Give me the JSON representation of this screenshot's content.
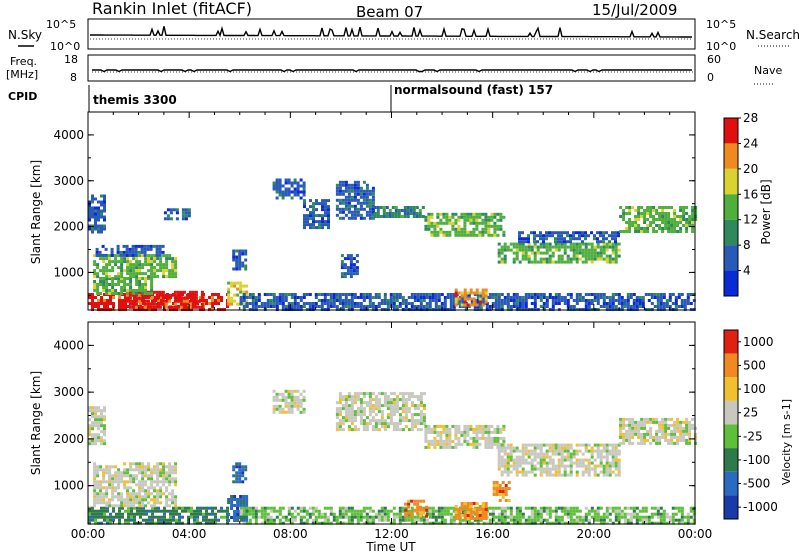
{
  "header": {
    "title": "Rankin Inlet (fitACF)",
    "beam": "Beam 07",
    "date": "15/Jul/2009"
  },
  "params": {
    "nsky_label": "N.Sky",
    "nsearch_label": "N.Search",
    "freq_label": "Freq.",
    "freq_unit": "[MHz]",
    "nave_label": "Nave",
    "cpid_label": "CPID",
    "noise_left_ticks": [
      "10^5",
      "10^0"
    ],
    "noise_right_ticks": [
      "10^5",
      "10^0"
    ],
    "freq_ticks": [
      "18",
      "8"
    ],
    "nave_ticks": [
      "60",
      "0"
    ],
    "cpid_segments": [
      {
        "start_hour": 0,
        "label": "themis 3300"
      },
      {
        "start_hour": 12,
        "label": "normalsound (fast) 157"
      }
    ]
  },
  "chart_data": [
    {
      "type": "heatmap",
      "panel": "power",
      "ylabel": "Slant Range [km]",
      "ylim": [
        180,
        4500
      ],
      "yticks": [
        "1000",
        "2000",
        "3000",
        "4000"
      ],
      "xlim": [
        0,
        24
      ],
      "colorbar": {
        "label": "Power [dB]",
        "ticks": [
          "4",
          "8",
          "12",
          "16",
          "20",
          "24",
          "28"
        ],
        "colors": [
          "#0a2ad6",
          "#2a5ab8",
          "#2e8a5a",
          "#4fae3c",
          "#dad231",
          "#ee8a20",
          "#e01010"
        ]
      },
      "echo_regions": [
        {
          "t0": 0,
          "t1": 5.5,
          "r0": 200,
          "r1": 550,
          "level": 6
        },
        {
          "t0": 1.5,
          "t1": 4.5,
          "r0": 250,
          "r1": 600,
          "level": 6
        },
        {
          "t0": 0.2,
          "t1": 2.5,
          "r0": 550,
          "r1": 900,
          "level": 3
        },
        {
          "t0": 0.2,
          "t1": 3.5,
          "r0": 900,
          "r1": 1400,
          "level": 3
        },
        {
          "t0": 0.3,
          "t1": 3,
          "r0": 1400,
          "r1": 1600,
          "level": 1
        },
        {
          "t0": 0,
          "t1": 0.6,
          "r0": 1900,
          "r1": 2700,
          "level": 1
        },
        {
          "t0": 3,
          "t1": 4,
          "r0": 2200,
          "r1": 2400,
          "level": 1
        },
        {
          "t0": 5.5,
          "t1": 6.3,
          "r0": 300,
          "r1": 800,
          "level": 4
        },
        {
          "t0": 5.7,
          "t1": 6.2,
          "r0": 1100,
          "r1": 1500,
          "level": 1
        },
        {
          "t0": 6,
          "t1": 24,
          "r0": 200,
          "r1": 550,
          "level": 1
        },
        {
          "t0": 7.3,
          "t1": 8.5,
          "r0": 2600,
          "r1": 3050,
          "level": 1
        },
        {
          "t0": 8.5,
          "t1": 9.5,
          "r0": 2000,
          "r1": 2600,
          "level": 1
        },
        {
          "t0": 9.8,
          "t1": 11.3,
          "r0": 2200,
          "r1": 3000,
          "level": 1
        },
        {
          "t0": 11.3,
          "t1": 13.3,
          "r0": 2200,
          "r1": 2450,
          "level": 2
        },
        {
          "t0": 13.3,
          "t1": 16.5,
          "r0": 1800,
          "r1": 2300,
          "level": 3
        },
        {
          "t0": 16.2,
          "t1": 21,
          "r0": 1250,
          "r1": 1650,
          "level": 3
        },
        {
          "t0": 17,
          "t1": 21,
          "r0": 1650,
          "r1": 1900,
          "level": 1
        },
        {
          "t0": 21,
          "t1": 24,
          "r0": 1900,
          "r1": 2450,
          "level": 3
        },
        {
          "t0": 10,
          "t1": 10.7,
          "r0": 900,
          "r1": 1400,
          "level": 1
        },
        {
          "t0": 14.5,
          "t1": 15.7,
          "r0": 300,
          "r1": 650,
          "level": 5
        }
      ]
    },
    {
      "type": "heatmap",
      "panel": "velocity",
      "ylabel": "Slant Range [km]",
      "xlabel": "Time UT",
      "ylim": [
        180,
        4500
      ],
      "yticks": [
        "1000",
        "2000",
        "3000",
        "4000"
      ],
      "xlim": [
        0,
        24
      ],
      "xticks": [
        "00:00",
        "04:00",
        "08:00",
        "12:00",
        "16:00",
        "20:00",
        "00:00"
      ],
      "colorbar": {
        "label": "Velocity [m s-1]",
        "ticks": [
          "1000",
          "500",
          "100",
          "25",
          "-25",
          "-100",
          "-500",
          "-1000"
        ],
        "colors": [
          "#1a3aaa",
          "#2a6ac0",
          "#2e7a4a",
          "#5fbf3a",
          "#c8c8c0",
          "#f0c030",
          "#f08a20",
          "#e02010"
        ]
      },
      "echo_regions": [
        {
          "t0": 0,
          "t1": 5.5,
          "r0": 200,
          "r1": 550,
          "level": 2
        },
        {
          "t0": 0.2,
          "t1": 3.5,
          "r0": 600,
          "r1": 1500,
          "level": 4
        },
        {
          "t0": 0,
          "t1": 0.6,
          "r0": 1900,
          "r1": 2700,
          "level": 4
        },
        {
          "t0": 5.5,
          "t1": 6.3,
          "r0": 250,
          "r1": 800,
          "level": 1
        },
        {
          "t0": 5.7,
          "t1": 6.2,
          "r0": 1100,
          "r1": 1500,
          "level": 1
        },
        {
          "t0": 6,
          "t1": 24,
          "r0": 200,
          "r1": 550,
          "level": 3
        },
        {
          "t0": 7.3,
          "t1": 8.5,
          "r0": 2600,
          "r1": 3050,
          "level": 4
        },
        {
          "t0": 9.8,
          "t1": 13.3,
          "r0": 2200,
          "r1": 3000,
          "level": 4
        },
        {
          "t0": 13.3,
          "t1": 16.5,
          "r0": 1800,
          "r1": 2300,
          "level": 4
        },
        {
          "t0": 16.2,
          "t1": 21,
          "r0": 1250,
          "r1": 1900,
          "level": 4
        },
        {
          "t0": 21,
          "t1": 24,
          "r0": 1900,
          "r1": 2450,
          "level": 4
        },
        {
          "t0": 14.5,
          "t1": 15.7,
          "r0": 300,
          "r1": 650,
          "level": 6
        },
        {
          "t0": 12.5,
          "t1": 13.4,
          "r0": 350,
          "r1": 700,
          "level": 6
        },
        {
          "t0": 16,
          "t1": 16.6,
          "r0": 700,
          "r1": 1100,
          "level": 6
        }
      ]
    }
  ]
}
